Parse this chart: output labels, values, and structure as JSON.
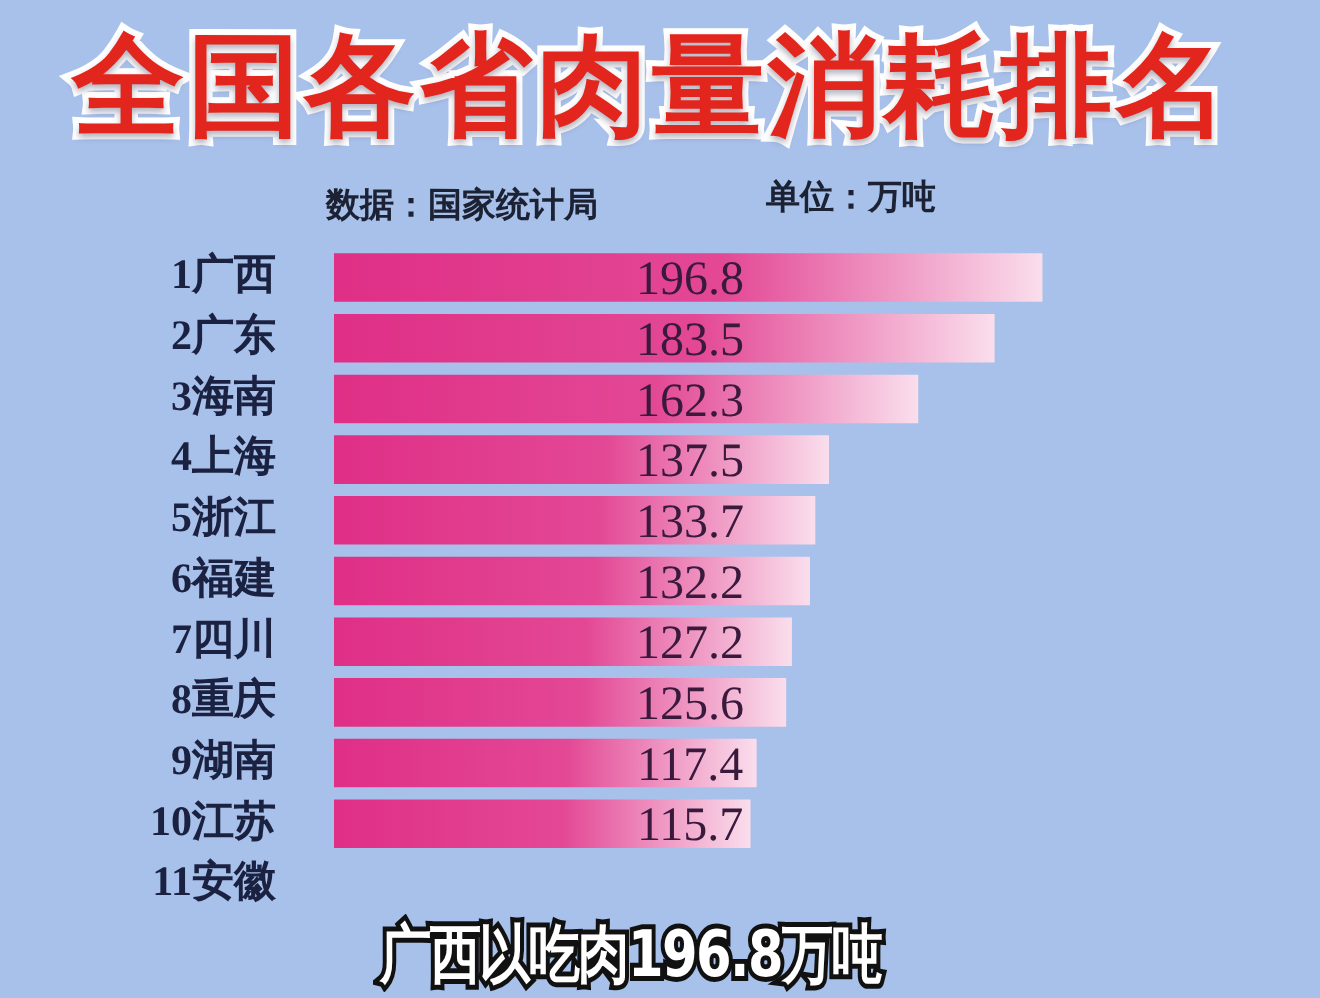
{
  "chart_data": {
    "type": "bar",
    "orientation": "horizontal",
    "title": "全国各省肉量消耗排名",
    "subtitle": "数据：国家统计局",
    "annotations": [
      "单位：万吨",
      "广西以吃肉196.8万吨"
    ],
    "categories": [
      "1广西",
      "2广东",
      "3海南",
      "4上海",
      "5浙江",
      "6福建",
      "7四川",
      "8重庆",
      "9湖南",
      "10江苏",
      "11安徽"
    ],
    "values": [
      196.8,
      183.5,
      162.3,
      137.5,
      133.7,
      132.2,
      127.2,
      125.6,
      117.4,
      115.7,
      null
    ],
    "color": "#df2f86",
    "data_labels": true,
    "tick_labels": "y"
  }
}
